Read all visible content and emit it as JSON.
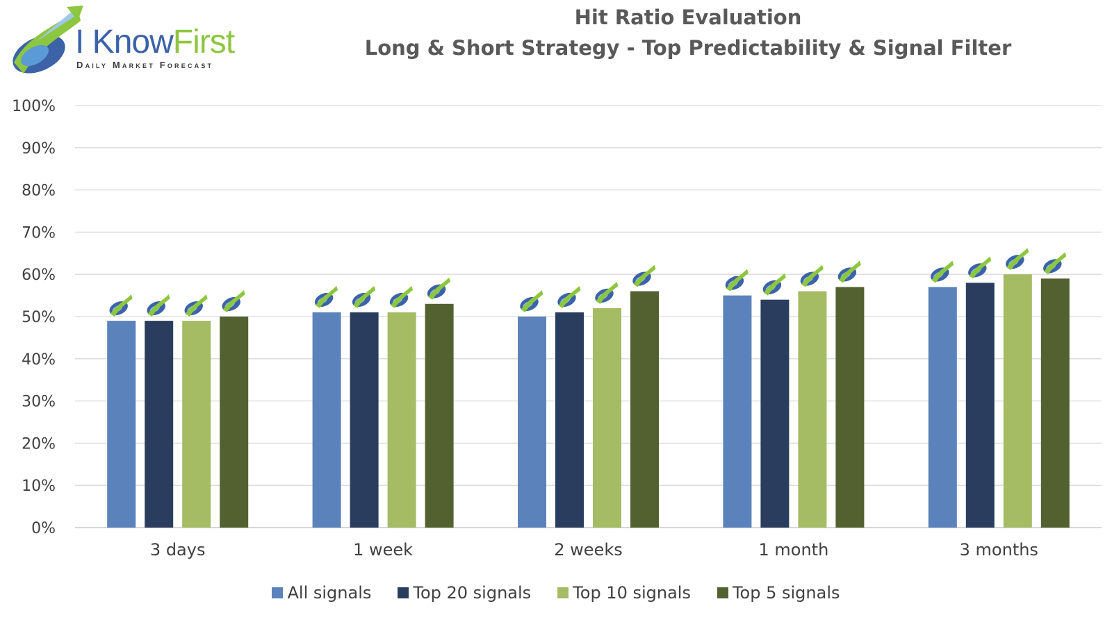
{
  "logo": {
    "brand_part1": "I Know",
    "brand_part2": "First",
    "tagline": "Daily Market Forecast"
  },
  "chart_data": {
    "type": "bar",
    "title": "Hit Ratio Evaluation",
    "subtitle": "Long & Short Strategy - Top Predictability & Signal Filter",
    "categories": [
      "3 days",
      "1 week",
      "2 weeks",
      "1 month",
      "3 months"
    ],
    "series": [
      {
        "name": "All signals",
        "color": "#5b82bb",
        "values": [
          0.49,
          0.51,
          0.5,
          0.55,
          0.57
        ]
      },
      {
        "name": "Top 20 signals",
        "color": "#2b3d5e",
        "values": [
          0.49,
          0.51,
          0.51,
          0.54,
          0.58
        ]
      },
      {
        "name": "Top 10 signals",
        "color": "#a5bb64",
        "values": [
          0.49,
          0.51,
          0.52,
          0.56,
          0.6
        ]
      },
      {
        "name": "Top 5 signals",
        "color": "#536130",
        "values": [
          0.5,
          0.53,
          0.56,
          0.57,
          0.59
        ]
      }
    ],
    "y_ticks": [
      "0%",
      "10%",
      "20%",
      "30%",
      "40%",
      "50%",
      "60%",
      "70%",
      "80%",
      "90%",
      "100%"
    ],
    "ylim": [
      0,
      1
    ],
    "grid": true,
    "legend_position": "bottom",
    "bar_marker_icon": "i-know-first-logo-icon"
  }
}
